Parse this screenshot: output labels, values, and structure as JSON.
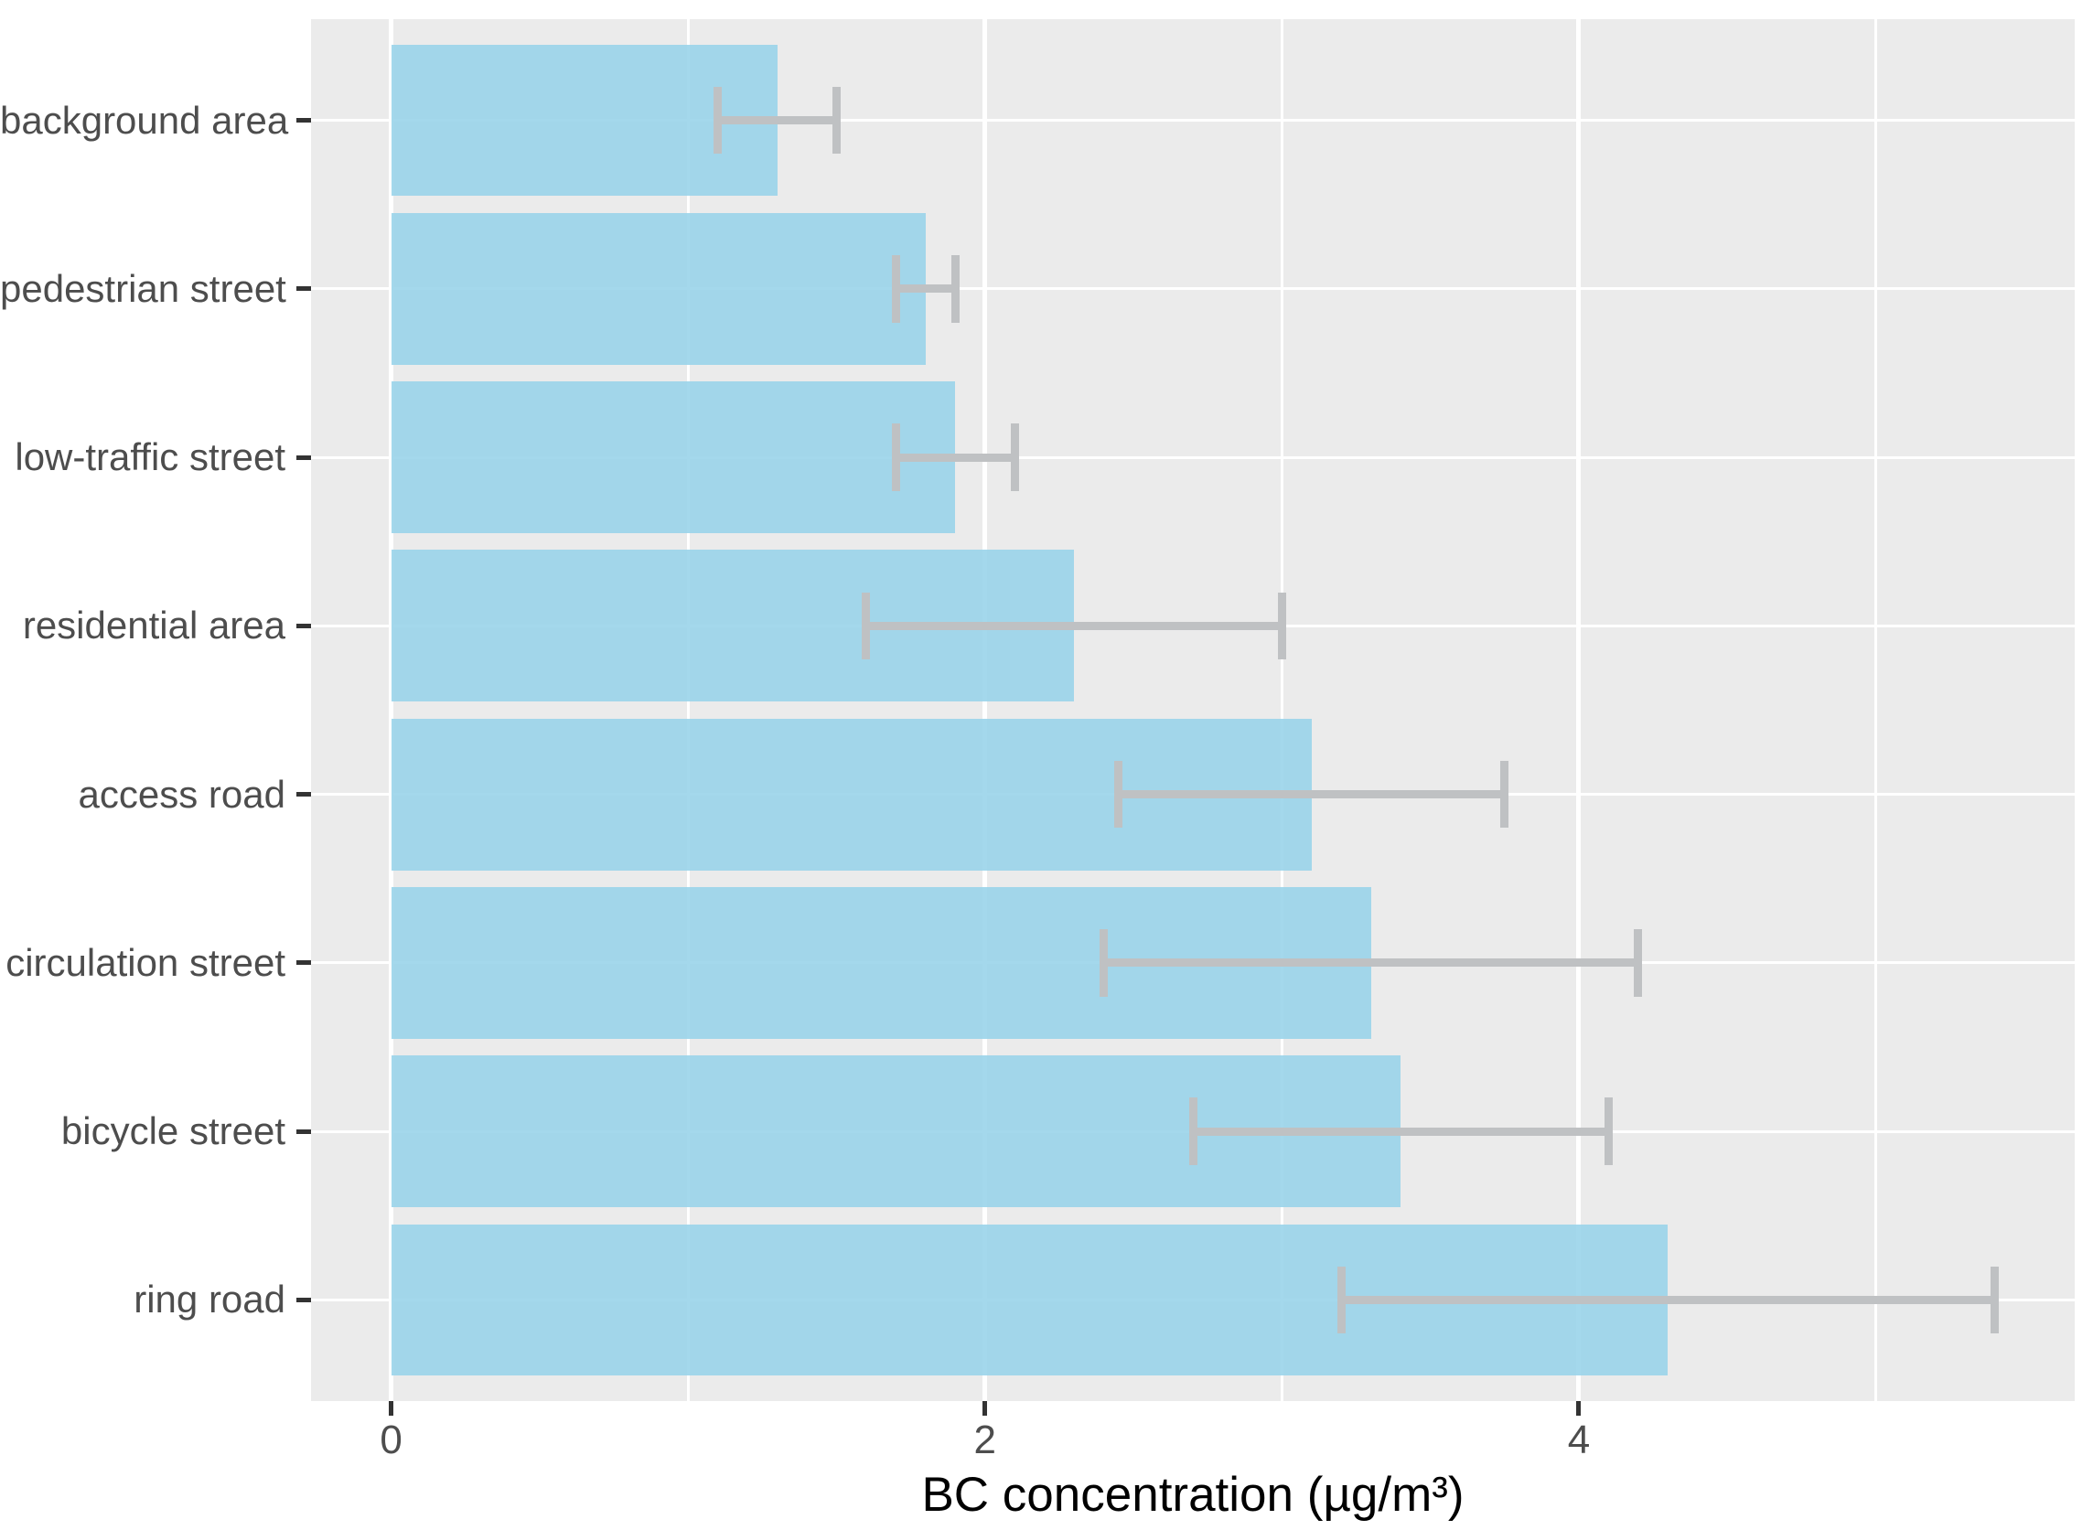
{
  "chart_data": {
    "type": "bar",
    "orientation": "horizontal",
    "title": "",
    "xlabel": "BC concentration (µg/m³)",
    "ylabel": "",
    "categories": [
      "background area",
      "pedestrian street",
      "low-traffic street",
      "residential area",
      "access road",
      "circulation street",
      "bicycle street",
      "ring road"
    ],
    "values": [
      1.3,
      1.8,
      1.9,
      2.3,
      3.1,
      3.3,
      3.4,
      4.3
    ],
    "error_low": [
      1.1,
      1.7,
      1.7,
      1.6,
      2.45,
      2.4,
      2.7,
      3.2
    ],
    "error_high": [
      1.5,
      1.9,
      2.1,
      3.0,
      3.75,
      4.2,
      4.1,
      5.4
    ],
    "x_tick_labels": [
      "0",
      "2",
      "4"
    ],
    "x_ticks": [
      0,
      2,
      4
    ],
    "x_minor_gridlines": [
      1,
      3,
      5
    ],
    "xlim": [
      -0.27,
      5.67
    ],
    "bar_width_fraction": 0.9,
    "rows_span_units": 8.2,
    "row_margin_units": 0.6,
    "error_cap_units": 0.4,
    "grid": true,
    "legend": false,
    "colors": {
      "bar_fill": "#9AD4EA",
      "bar_alpha": 0.9,
      "error_bar": "#BFC1C3",
      "panel_background": "#EBEBEB",
      "gridline": "#FFFFFF",
      "axis_text": "#4D4D4D",
      "axis_title": "#000000",
      "tick_mark": "#333333"
    }
  }
}
